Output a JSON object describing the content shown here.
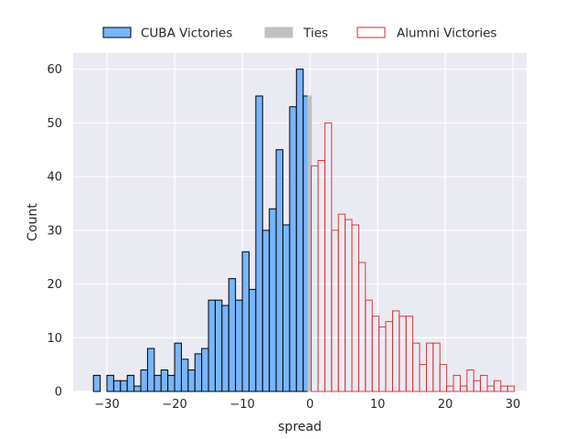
{
  "chart_data": {
    "type": "bar",
    "xlabel": "spread",
    "ylabel": "Count",
    "xlim": [
      -35,
      32
    ],
    "ylim": [
      0,
      63
    ],
    "x_ticks": [
      -30,
      -20,
      -10,
      0,
      10,
      20,
      30
    ],
    "y_ticks": [
      0,
      10,
      20,
      30,
      40,
      50,
      60
    ],
    "x_tick_labels": [
      "−30",
      "−20",
      "−10",
      "0",
      "10",
      "20",
      "30"
    ],
    "y_tick_labels": [
      "0",
      "10",
      "20",
      "30",
      "40",
      "50",
      "60"
    ],
    "grid": true,
    "legend_position": "top-center-outside",
    "series": [
      {
        "name": "CUBA Victories",
        "fill": "#77b5fe",
        "edge": "#000000",
        "bins": [
          [
            -32,
            -31,
            3
          ],
          [
            -31,
            -30,
            0
          ],
          [
            -30,
            -29,
            3
          ],
          [
            -29,
            -28,
            2
          ],
          [
            -28,
            -27,
            2
          ],
          [
            -27,
            -26,
            3
          ],
          [
            -26,
            -25,
            1
          ],
          [
            -25,
            -24,
            4
          ],
          [
            -24,
            -23,
            8
          ],
          [
            -23,
            -22,
            3
          ],
          [
            -22,
            -21,
            4
          ],
          [
            -21,
            -20,
            3
          ],
          [
            -20,
            -19,
            9
          ],
          [
            -19,
            -18,
            6
          ],
          [
            -18,
            -17,
            4
          ],
          [
            -17,
            -16,
            7
          ],
          [
            -16,
            -15,
            8
          ],
          [
            -15,
            -14,
            17
          ],
          [
            -14,
            -13,
            17
          ],
          [
            -13,
            -12,
            16
          ],
          [
            -12,
            -11,
            21
          ],
          [
            -11,
            -10,
            17
          ],
          [
            -10,
            -9,
            26
          ],
          [
            -9,
            -8,
            19
          ],
          [
            -8,
            -7,
            55
          ],
          [
            -7,
            -6,
            30
          ],
          [
            -6,
            -5,
            34
          ],
          [
            -5,
            -4,
            45
          ],
          [
            -4,
            -3,
            31
          ],
          [
            -3,
            -2,
            53
          ],
          [
            -2,
            -1,
            60
          ],
          [
            -1,
            0,
            55
          ]
        ]
      },
      {
        "name": "Ties",
        "fill": "#c0c0c0",
        "edge": "#c0c0c0",
        "bins": [
          [
            -0.3,
            0.2,
            55
          ]
        ]
      },
      {
        "name": "Alumni Victories",
        "fill": "none",
        "edge": "#d62728",
        "bins": [
          [
            0.2,
            1.2,
            42
          ],
          [
            1.2,
            2.2,
            43
          ],
          [
            2.2,
            3.2,
            50
          ],
          [
            3.2,
            4.2,
            30
          ],
          [
            4.2,
            5.2,
            33
          ],
          [
            5.2,
            6.2,
            32
          ],
          [
            6.2,
            7.2,
            31
          ],
          [
            7.2,
            8.2,
            24
          ],
          [
            8.2,
            9.2,
            17
          ],
          [
            9.2,
            10.2,
            14
          ],
          [
            10.2,
            11.2,
            12
          ],
          [
            11.2,
            12.2,
            13
          ],
          [
            12.2,
            13.2,
            15
          ],
          [
            13.2,
            14.2,
            14
          ],
          [
            14.2,
            15.2,
            14
          ],
          [
            15.2,
            16.2,
            9
          ],
          [
            16.2,
            17.2,
            5
          ],
          [
            17.2,
            18.2,
            9
          ],
          [
            18.2,
            19.2,
            9
          ],
          [
            19.2,
            20.2,
            5
          ],
          [
            20.2,
            21.2,
            1
          ],
          [
            21.2,
            22.2,
            3
          ],
          [
            22.2,
            23.2,
            1
          ],
          [
            23.2,
            24.2,
            4
          ],
          [
            24.2,
            25.2,
            2
          ],
          [
            25.2,
            26.2,
            3
          ],
          [
            26.2,
            27.2,
            1
          ],
          [
            27.2,
            28.2,
            2
          ],
          [
            28.2,
            29.2,
            1
          ],
          [
            29.2,
            30.2,
            1
          ]
        ]
      }
    ]
  },
  "legend": {
    "items": [
      {
        "label": "CUBA Victories",
        "fill": "#77b5fe",
        "edge": "#000000"
      },
      {
        "label": "Ties",
        "fill": "#c0c0c0",
        "edge": "#c0c0c0"
      },
      {
        "label": "Alumni Victories",
        "fill": "#ffffff",
        "edge": "#d62728"
      }
    ]
  },
  "colors": {
    "plot_background": "#eaeaf2",
    "grid": "#ffffff",
    "text": "#262626"
  }
}
